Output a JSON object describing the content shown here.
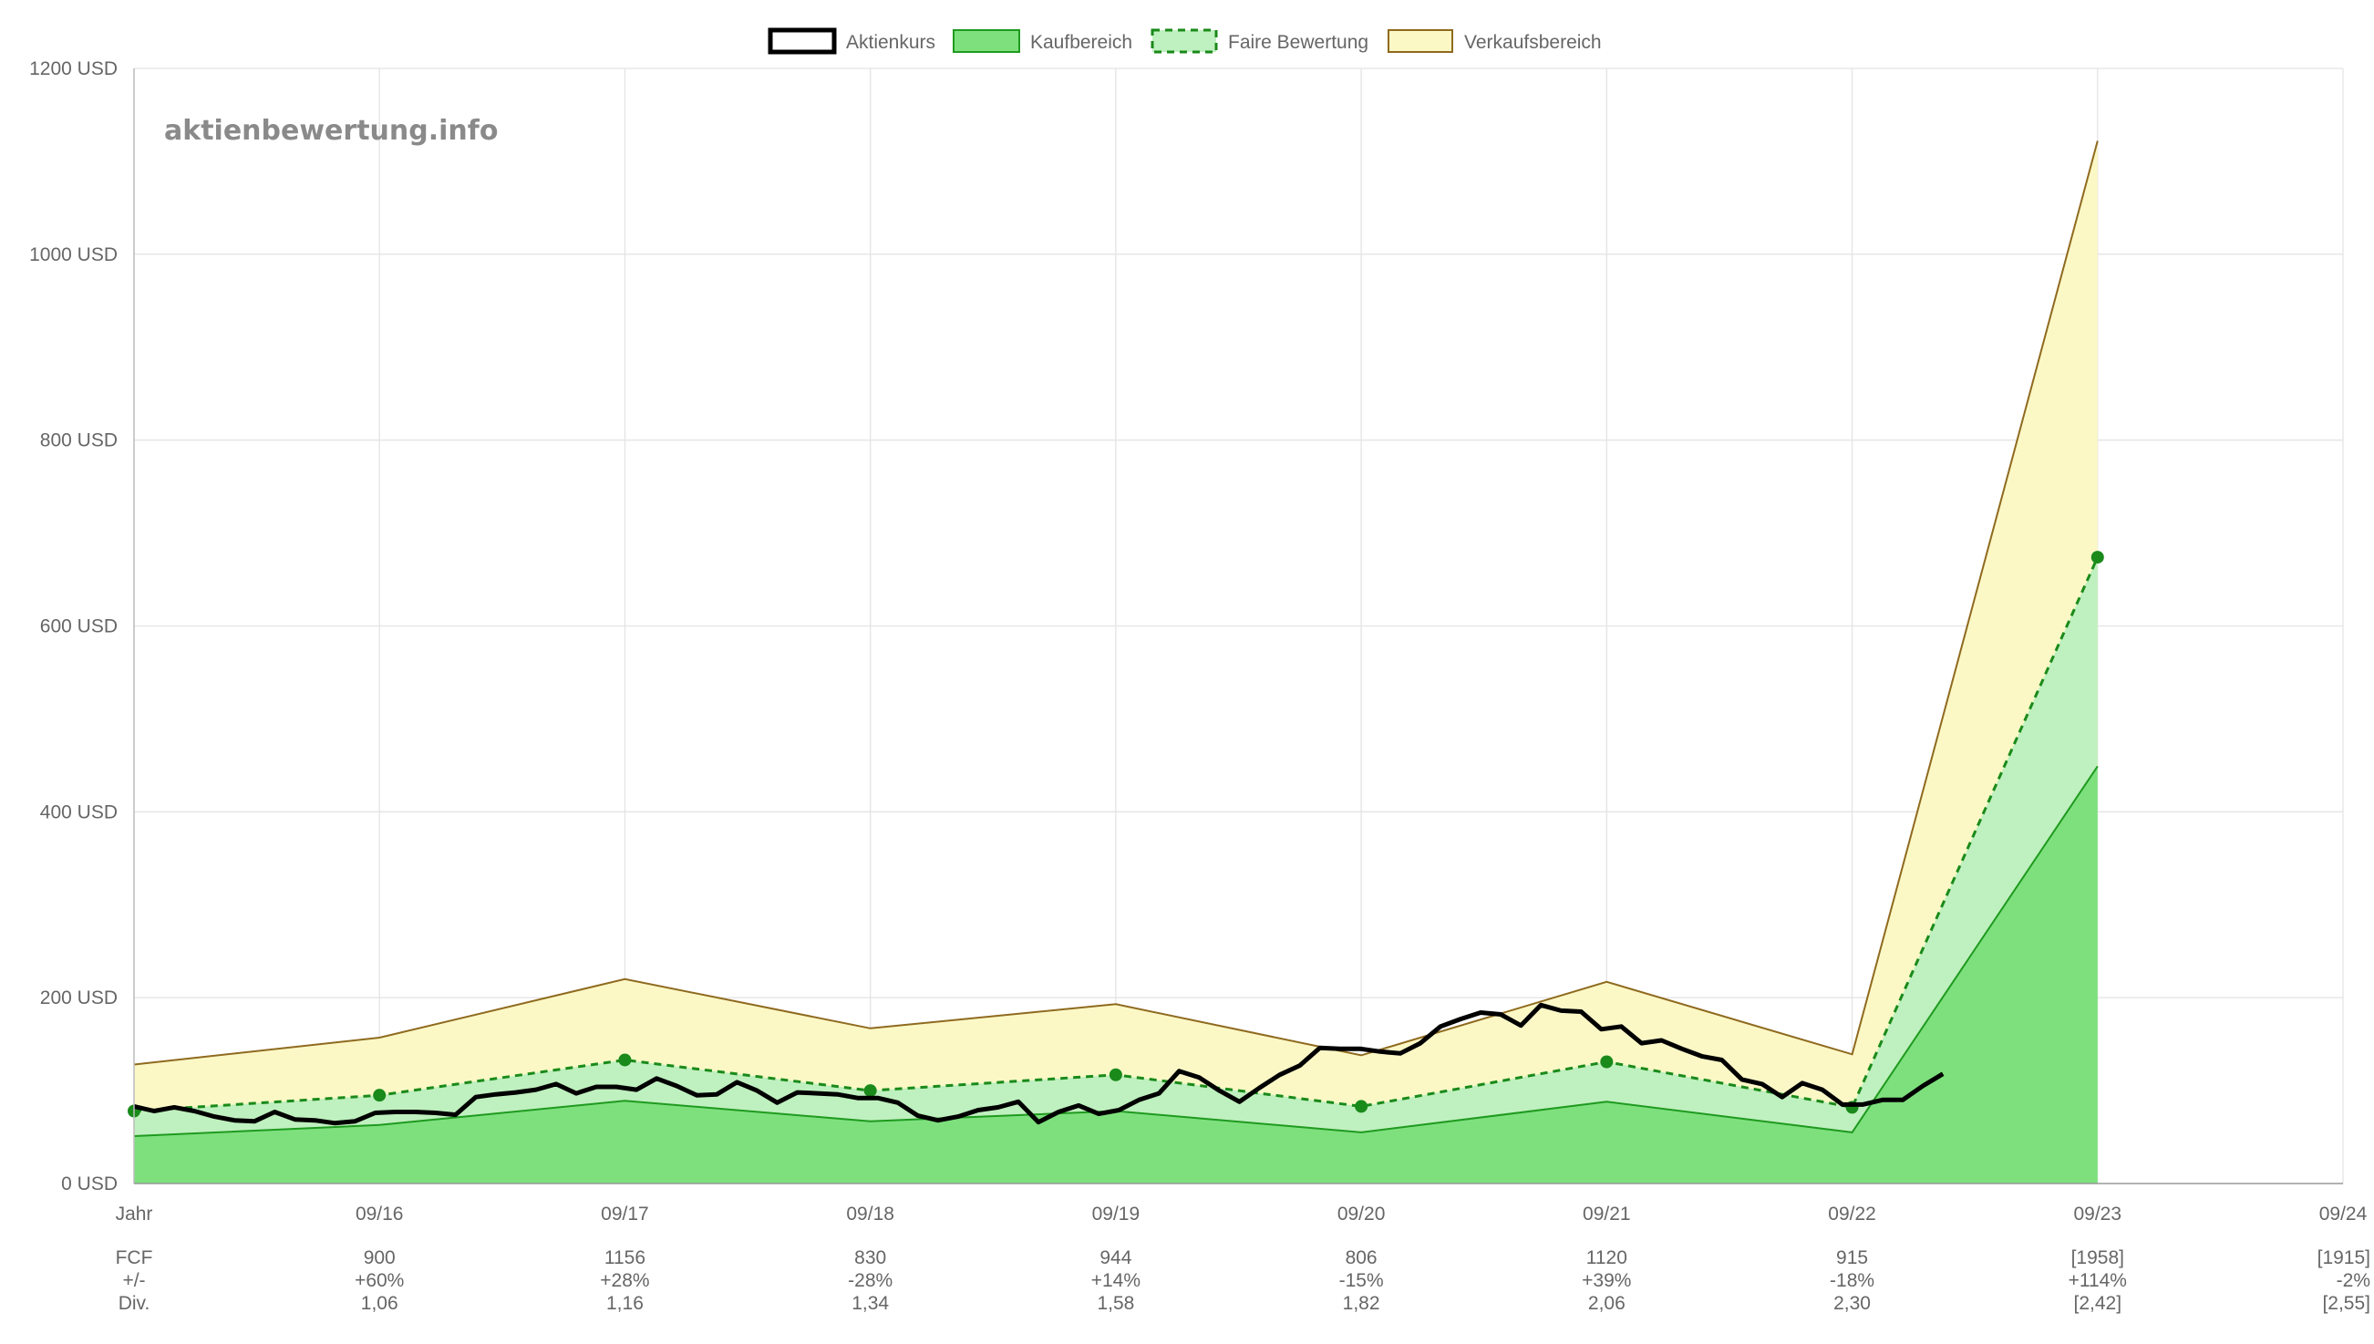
{
  "watermark": "aktienbewertung.info",
  "legend": {
    "price": "Aktienkurs",
    "buy": "Kaufbereich",
    "fair": "Faire Bewertung",
    "sell": "Verkaufsbereich"
  },
  "colors": {
    "price": "#000000",
    "buy_fill": "#7de07d",
    "buy_line": "#1f9a1f",
    "fair_fill": "#bff0bf",
    "fair_line": "#1a8a1a",
    "sell_fill": "#fbf8c6",
    "sell_line": "#8f6a1f"
  },
  "chart_data": {
    "type": "area",
    "y_unit": "USD",
    "ylim": [
      0,
      1200
    ],
    "y_ticks": [
      "0 USD",
      "200 USD",
      "400 USD",
      "600 USD",
      "800 USD",
      "1000 USD",
      "1200 USD"
    ],
    "y_tick_values": [
      0,
      200,
      400,
      600,
      800,
      1000,
      1200
    ],
    "x_first_label": "Jahr",
    "categories": [
      "09/16",
      "09/17",
      "09/18",
      "09/19",
      "09/20",
      "09/21",
      "09/22",
      "09/23",
      "09/24"
    ],
    "grid": true,
    "legend_position": "top-center",
    "bands": {
      "x": [
        0,
        1,
        2,
        3,
        4,
        5,
        6,
        7,
        8
      ],
      "sell_upper": [
        128,
        157,
        220,
        167,
        193,
        138,
        217,
        139,
        1122
      ],
      "fair": [
        78,
        95,
        133,
        100,
        117,
        83,
        131,
        82,
        674
      ],
      "buy_lower": [
        51,
        63,
        89,
        67,
        78,
        55,
        88,
        55,
        449
      ]
    },
    "price": {
      "x_start": 0,
      "x_end": 7.37,
      "values": [
        83,
        78,
        82,
        78,
        72,
        68,
        67,
        77,
        69,
        68,
        65,
        67,
        76,
        77,
        77,
        76,
        74,
        93,
        96,
        98,
        101,
        107,
        97,
        104,
        104,
        101,
        113,
        105,
        95,
        96,
        109,
        100,
        87,
        98,
        97,
        96,
        92,
        92,
        87,
        73,
        68,
        72,
        79,
        82,
        88,
        66,
        77,
        84,
        75,
        79,
        90,
        97,
        121,
        114,
        100,
        88,
        103,
        117,
        127,
        146,
        145,
        145,
        142,
        140,
        151,
        169,
        177,
        184,
        182,
        170,
        192,
        186,
        185,
        166,
        169,
        151,
        154,
        145,
        137,
        133,
        112,
        107,
        93,
        108,
        101,
        85,
        85,
        90,
        90,
        105,
        118
      ]
    },
    "table": {
      "row_labels": [
        "FCF",
        "+/-",
        "Div."
      ],
      "columns": [
        {
          "label": "09/16",
          "fcf": "900",
          "change": "+60%",
          "div": "1,06"
        },
        {
          "label": "09/17",
          "fcf": "1156",
          "change": "+28%",
          "div": "1,16"
        },
        {
          "label": "09/18",
          "fcf": "830",
          "change": "-28%",
          "div": "1,34"
        },
        {
          "label": "09/19",
          "fcf": "944",
          "change": "+14%",
          "div": "1,58"
        },
        {
          "label": "09/20",
          "fcf": "806",
          "change": "-15%",
          "div": "1,82"
        },
        {
          "label": "09/21",
          "fcf": "1120",
          "change": "+39%",
          "div": "2,06"
        },
        {
          "label": "09/22",
          "fcf": "915",
          "change": "-18%",
          "div": "2,30"
        },
        {
          "label": "09/23",
          "fcf": "[1958]",
          "change": "+114%",
          "div": "[2,42]"
        },
        {
          "label": "09/24",
          "fcf": "[1915]",
          "change": "-2%",
          "div": "[2,55]"
        }
      ]
    }
  }
}
